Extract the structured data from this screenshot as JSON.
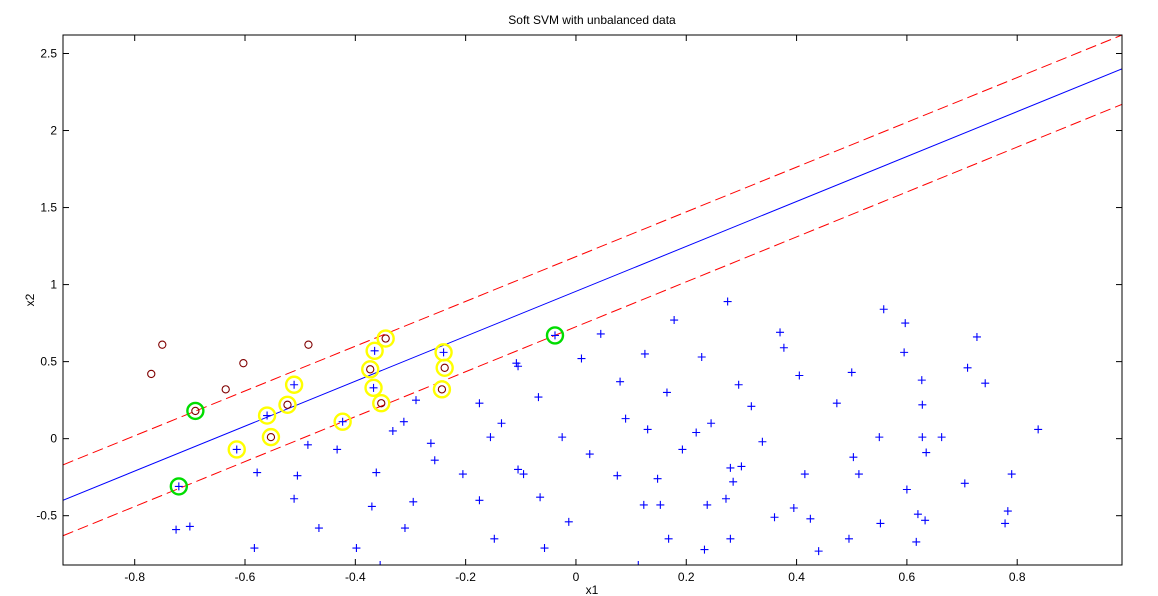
{
  "chart_data": {
    "type": "scatter",
    "title": "Soft SVM with unbalanced data",
    "xlabel": "x1",
    "ylabel": "x2",
    "xlim": [
      -0.93,
      0.99
    ],
    "ylim": [
      -0.82,
      2.62
    ],
    "xticks": [
      -0.8,
      -0.6,
      -0.4,
      -0.2,
      0,
      0.2,
      0.4,
      0.6,
      0.8
    ],
    "xtick_labels": [
      "-0.8",
      "-0.6",
      "-0.4",
      "-0.2",
      "0",
      "0.2",
      "0.4",
      "0.6",
      "0.8"
    ],
    "yticks": [
      -0.5,
      0,
      0.5,
      1,
      1.5,
      2,
      2.5
    ],
    "ytick_labels": [
      "-0.5",
      "0",
      "0.5",
      "1",
      "1.5",
      "2",
      "2.5"
    ],
    "grid": false,
    "lines": [
      {
        "role": "decision-boundary",
        "style": "solid",
        "color": "#0000ff",
        "points": [
          [
            -0.93,
            -0.4
          ],
          [
            0.99,
            2.4
          ]
        ]
      },
      {
        "role": "margin-upper",
        "style": "dashed",
        "color": "#ff0000",
        "points": [
          [
            -0.93,
            -0.17
          ],
          [
            0.99,
            2.62
          ]
        ]
      },
      {
        "role": "margin-lower",
        "style": "dashed",
        "color": "#ff0000",
        "points": [
          [
            -0.93,
            -0.63
          ],
          [
            0.99,
            2.17
          ]
        ]
      }
    ],
    "series": [
      {
        "marker": "circle",
        "color": "#800000",
        "points": [
          [
            -0.77,
            0.42
          ],
          [
            -0.75,
            0.61
          ],
          [
            -0.69,
            0.18
          ],
          [
            -0.635,
            0.32
          ],
          [
            -0.603,
            0.49
          ],
          [
            -0.523,
            0.22
          ],
          [
            -0.485,
            0.61
          ],
          [
            -0.373,
            0.45
          ],
          [
            -0.353,
            0.23
          ],
          [
            -0.345,
            0.65
          ],
          [
            -0.243,
            0.32
          ],
          [
            -0.238,
            0.46
          ],
          [
            -0.553,
            0.01
          ]
        ]
      },
      {
        "marker": "plus",
        "color": "#0000ff",
        "points": [
          [
            -0.72,
            -0.31
          ],
          [
            -0.725,
            -0.59
          ],
          [
            -0.7,
            -0.57
          ],
          [
            -0.615,
            -0.07
          ],
          [
            -0.583,
            -0.71
          ],
          [
            -0.578,
            -0.22
          ],
          [
            -0.56,
            0.15
          ],
          [
            -0.511,
            0.35
          ],
          [
            -0.511,
            -0.39
          ],
          [
            -0.505,
            -0.24
          ],
          [
            -0.486,
            -0.04
          ],
          [
            -0.466,
            -0.58
          ],
          [
            -0.433,
            -0.07
          ],
          [
            -0.423,
            0.11
          ],
          [
            -0.398,
            -0.71
          ],
          [
            -0.37,
            -0.44
          ],
          [
            -0.365,
            0.57
          ],
          [
            -0.367,
            0.33
          ],
          [
            -0.362,
            -0.22
          ],
          [
            -0.355,
            -0.82
          ],
          [
            -0.332,
            0.05
          ],
          [
            -0.312,
            0.11
          ],
          [
            -0.31,
            -0.58
          ],
          [
            -0.295,
            -0.41
          ],
          [
            -0.29,
            0.25
          ],
          [
            -0.263,
            -0.03
          ],
          [
            -0.256,
            -0.14
          ],
          [
            -0.24,
            0.56
          ],
          [
            -0.205,
            -0.23
          ],
          [
            -0.175,
            0.23
          ],
          [
            -0.175,
            -0.4
          ],
          [
            -0.155,
            0.01
          ],
          [
            -0.148,
            -0.65
          ],
          [
            -0.135,
            0.1
          ],
          [
            -0.108,
            0.49
          ],
          [
            -0.105,
            0.47
          ],
          [
            -0.105,
            -0.2
          ],
          [
            -0.095,
            -0.23
          ],
          [
            -0.065,
            -0.38
          ],
          [
            -0.068,
            0.27
          ],
          [
            -0.057,
            -0.71
          ],
          [
            -0.038,
            0.67
          ],
          [
            -0.025,
            0.01
          ],
          [
            -0.013,
            -0.54
          ],
          [
            0.01,
            0.52
          ],
          [
            0.025,
            -0.1
          ],
          [
            0.045,
            0.68
          ],
          [
            0.075,
            -0.24
          ],
          [
            0.08,
            0.37
          ],
          [
            0.09,
            0.13
          ],
          [
            0.113,
            -0.82
          ],
          [
            0.123,
            -0.43
          ],
          [
            0.125,
            0.55
          ],
          [
            0.13,
            0.06
          ],
          [
            0.148,
            -0.26
          ],
          [
            0.153,
            -0.43
          ],
          [
            0.165,
            0.3
          ],
          [
            0.168,
            -0.65
          ],
          [
            0.178,
            0.77
          ],
          [
            0.193,
            -0.07
          ],
          [
            0.218,
            0.04
          ],
          [
            0.228,
            0.53
          ],
          [
            0.233,
            -0.72
          ],
          [
            0.238,
            -0.43
          ],
          [
            0.245,
            0.1
          ],
          [
            0.272,
            -0.39
          ],
          [
            0.275,
            0.89
          ],
          [
            0.28,
            -0.65
          ],
          [
            0.28,
            -0.19
          ],
          [
            0.285,
            -0.28
          ],
          [
            0.295,
            0.35
          ],
          [
            0.3,
            -0.18
          ],
          [
            0.318,
            0.21
          ],
          [
            0.338,
            -0.02
          ],
          [
            0.36,
            -0.51
          ],
          [
            0.37,
            0.69
          ],
          [
            0.377,
            0.59
          ],
          [
            0.395,
            -0.45
          ],
          [
            0.405,
            0.41
          ],
          [
            0.415,
            -0.23
          ],
          [
            0.425,
            -0.52
          ],
          [
            0.44,
            -0.73
          ],
          [
            0.473,
            0.23
          ],
          [
            0.495,
            -0.65
          ],
          [
            0.5,
            0.43
          ],
          [
            0.503,
            -0.12
          ],
          [
            0.513,
            -0.23
          ],
          [
            0.55,
            0.01
          ],
          [
            0.552,
            -0.55
          ],
          [
            0.558,
            0.84
          ],
          [
            0.595,
            0.56
          ],
          [
            0.597,
            0.75
          ],
          [
            0.6,
            -0.33
          ],
          [
            0.617,
            -0.67
          ],
          [
            0.62,
            -0.49
          ],
          [
            0.627,
            0.38
          ],
          [
            0.628,
            0.22
          ],
          [
            0.628,
            0.01
          ],
          [
            0.633,
            -0.53
          ],
          [
            0.635,
            -0.09
          ],
          [
            0.663,
            0.01
          ],
          [
            0.705,
            -0.29
          ],
          [
            0.71,
            0.46
          ],
          [
            0.727,
            0.66
          ],
          [
            0.742,
            0.36
          ],
          [
            0.778,
            -0.55
          ],
          [
            0.783,
            -0.47
          ],
          [
            0.79,
            -0.23
          ],
          [
            0.838,
            0.06
          ]
        ]
      }
    ],
    "highlight_rings": [
      {
        "color": "#ffff00",
        "points": [
          [
            -0.615,
            -0.07
          ],
          [
            -0.56,
            0.15
          ],
          [
            -0.553,
            0.01
          ],
          [
            -0.523,
            0.22
          ],
          [
            -0.511,
            0.35
          ],
          [
            -0.423,
            0.11
          ],
          [
            -0.373,
            0.45
          ],
          [
            -0.367,
            0.33
          ],
          [
            -0.365,
            0.57
          ],
          [
            -0.353,
            0.23
          ],
          [
            -0.345,
            0.65
          ],
          [
            -0.243,
            0.32
          ],
          [
            -0.24,
            0.56
          ],
          [
            -0.238,
            0.46
          ]
        ]
      },
      {
        "color": "#00dd00",
        "points": [
          [
            -0.72,
            -0.31
          ],
          [
            -0.69,
            0.18
          ],
          [
            -0.038,
            0.67
          ]
        ]
      }
    ]
  }
}
